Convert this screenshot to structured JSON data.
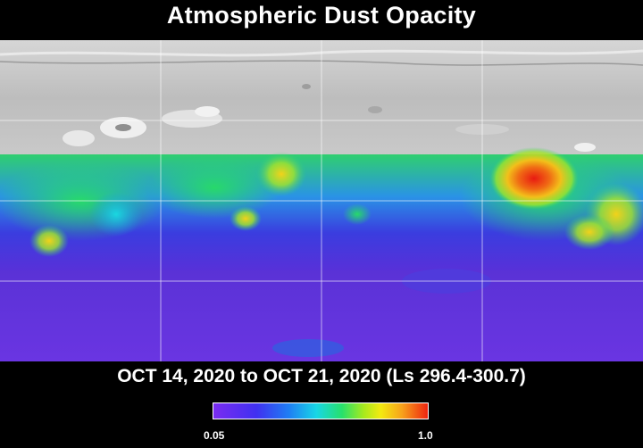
{
  "title": "Atmospheric Dust Opacity",
  "subtitle": "OCT 14, 2020 to OCT 21, 2020 (Ls 296.4-300.7)",
  "colorbar": {
    "min_label": "0.05",
    "max_label": "1.0",
    "colors": [
      "#7a2cf0",
      "#4030f0",
      "#1f7df4",
      "#18d6e6",
      "#27e06b",
      "#a6ea1e",
      "#f3ea10",
      "#f7a21b",
      "#ee2410"
    ]
  },
  "map": {
    "projection": "cylindrical",
    "no_data_region": "northern latitudes (grey shaded relief)",
    "dust_regions": [
      {
        "name": "strong-dust-storm",
        "opacity_fraction": 1.0
      },
      {
        "name": "elevated-dust-east",
        "opacity_fraction": 0.75
      },
      {
        "name": "elevated-dust-west",
        "opacity_fraction": 0.55
      },
      {
        "name": "low-dust-southern",
        "opacity_fraction": 0.1
      }
    ]
  }
}
